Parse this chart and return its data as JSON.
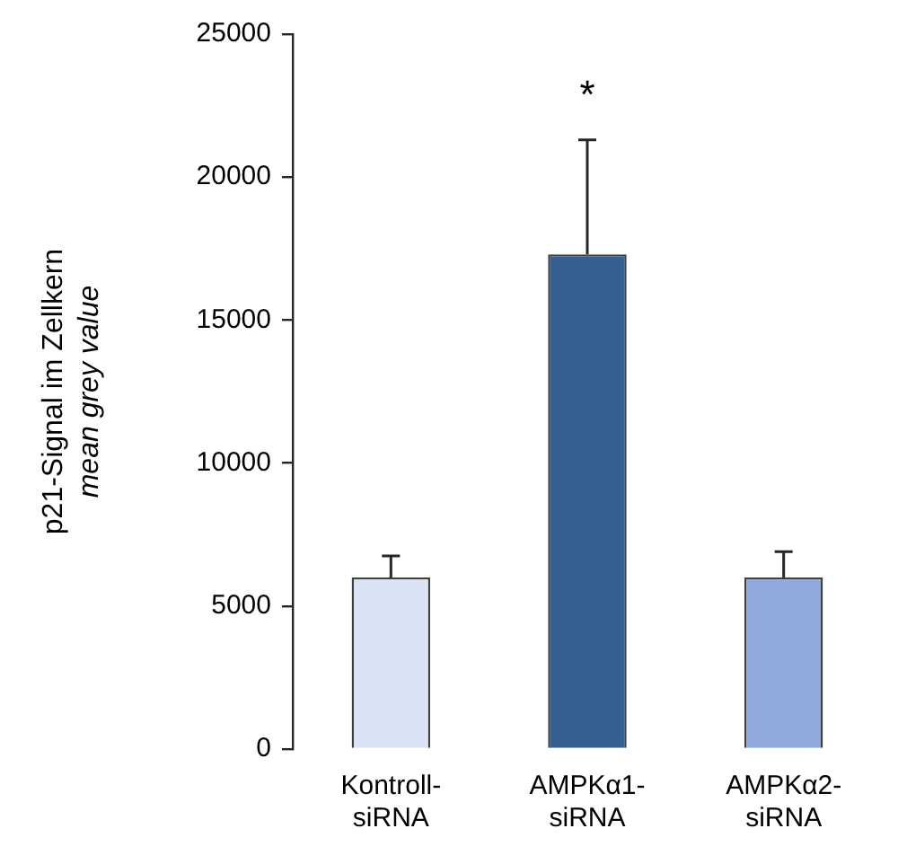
{
  "chart_data": {
    "type": "bar",
    "ylabel": "p21-Signal im Zellkern\nmean grey value",
    "categories": [
      "Kontroll-siRNA",
      "AMPKα1-siRNA",
      "AMPKα2-siRNA"
    ],
    "values": [
      6000,
      17300,
      6000
    ],
    "colors": [
      "#dae3f3",
      "#376092",
      "#8faadc"
    ],
    "errors": [
      [
        6000,
        6750
      ],
      [
        17300,
        21300
      ],
      [
        6000,
        6900
      ]
    ],
    "ylim": [
      0,
      25000
    ],
    "yticks": [
      0,
      5000,
      10000,
      15000,
      20000,
      25000
    ],
    "grid": false,
    "annotations": [
      "*"
    ]
  }
}
